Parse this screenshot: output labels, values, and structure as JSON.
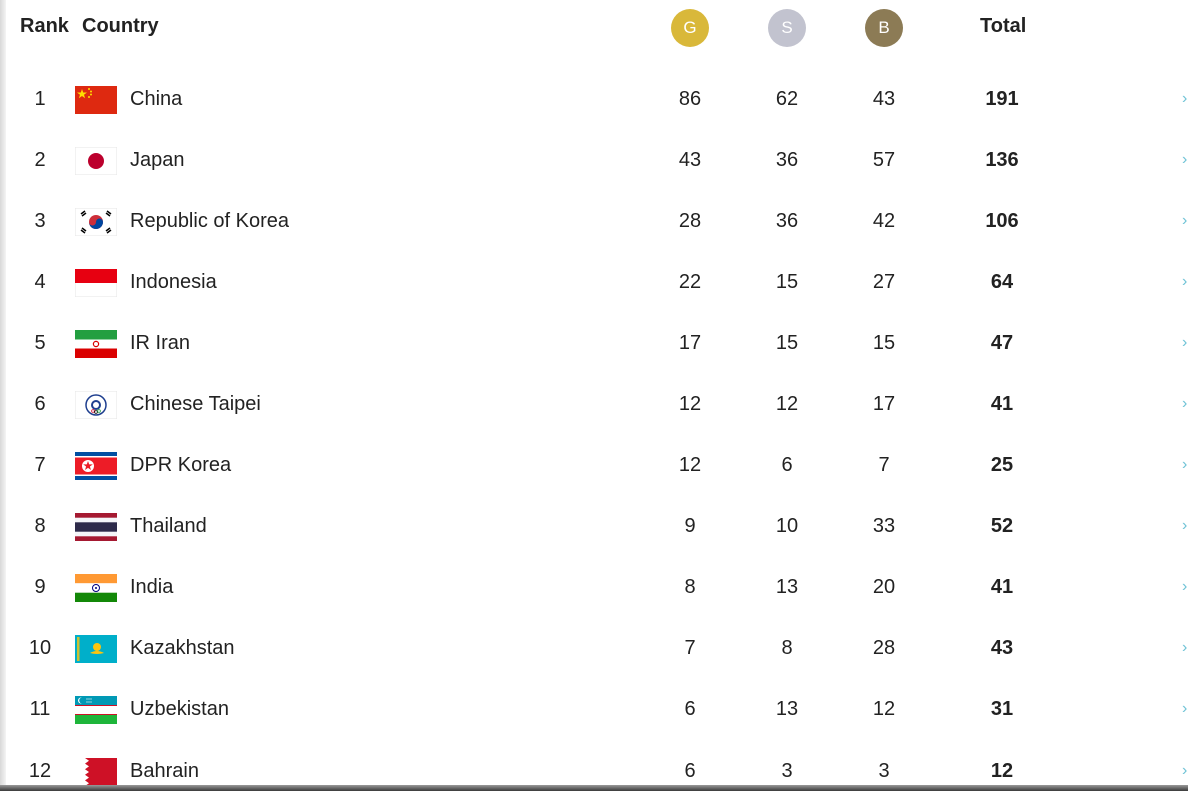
{
  "header": {
    "rank_label": "Rank",
    "country_label": "Country",
    "gold_label": "G",
    "silver_label": "S",
    "bronze_label": "B",
    "total_label": "Total"
  },
  "colors": {
    "gold": "#d9b83a",
    "silver": "#c2c3cf",
    "bronze": "#8c7b55",
    "arrow": "#6fc3d6"
  },
  "rows": [
    {
      "rank": "1",
      "country": "China",
      "gold": "86",
      "silver": "62",
      "bronze": "43",
      "total": "191",
      "flag": "china-flag-icon"
    },
    {
      "rank": "2",
      "country": "Japan",
      "gold": "43",
      "silver": "36",
      "bronze": "57",
      "total": "136",
      "flag": "japan-flag-icon"
    },
    {
      "rank": "3",
      "country": "Republic of Korea",
      "gold": "28",
      "silver": "36",
      "bronze": "42",
      "total": "106",
      "flag": "korea-flag-icon"
    },
    {
      "rank": "4",
      "country": "Indonesia",
      "gold": "22",
      "silver": "15",
      "bronze": "27",
      "total": "64",
      "flag": "indonesia-flag-icon"
    },
    {
      "rank": "5",
      "country": "IR Iran",
      "gold": "17",
      "silver": "15",
      "bronze": "15",
      "total": "47",
      "flag": "iran-flag-icon"
    },
    {
      "rank": "6",
      "country": "Chinese Taipei",
      "gold": "12",
      "silver": "12",
      "bronze": "17",
      "total": "41",
      "flag": "chinese-taipei-flag-icon"
    },
    {
      "rank": "7",
      "country": "DPR Korea",
      "gold": "12",
      "silver": "6",
      "bronze": "7",
      "total": "25",
      "flag": "dpr-korea-flag-icon"
    },
    {
      "rank": "8",
      "country": "Thailand",
      "gold": "9",
      "silver": "10",
      "bronze": "33",
      "total": "52",
      "flag": "thailand-flag-icon"
    },
    {
      "rank": "9",
      "country": "India",
      "gold": "8",
      "silver": "13",
      "bronze": "20",
      "total": "41",
      "flag": "india-flag-icon"
    },
    {
      "rank": "10",
      "country": "Kazakhstan",
      "gold": "7",
      "silver": "8",
      "bronze": "28",
      "total": "43",
      "flag": "kazakhstan-flag-icon"
    },
    {
      "rank": "11",
      "country": "Uzbekistan",
      "gold": "6",
      "silver": "13",
      "bronze": "12",
      "total": "31",
      "flag": "uzbekistan-flag-icon"
    },
    {
      "rank": "12",
      "country": "Bahrain",
      "gold": "6",
      "silver": "3",
      "bronze": "3",
      "total": "12",
      "flag": "bahrain-flag-icon"
    }
  ]
}
